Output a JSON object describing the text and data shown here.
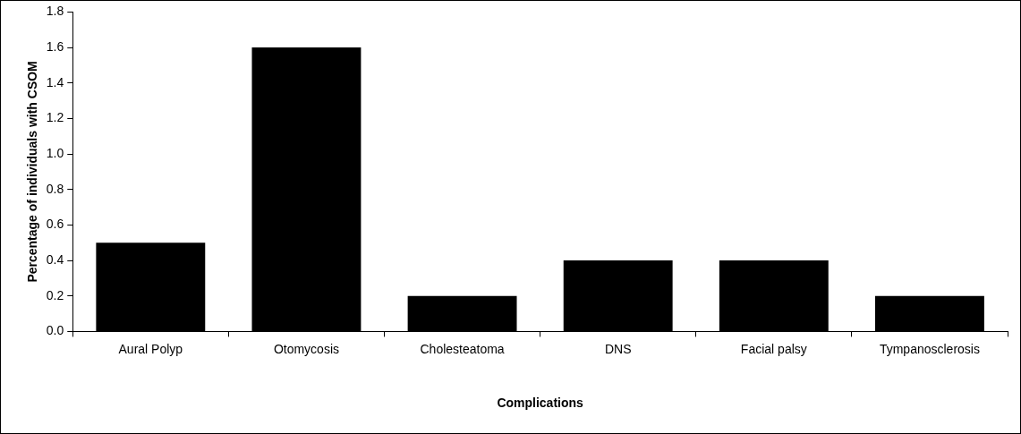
{
  "chart_data": {
    "type": "bar",
    "xlabel": "Complications",
    "ylabel": "Percentage of individuals with CSOM",
    "categories": [
      "Aural Polyp",
      "Otomycosis",
      "Cholesteatoma",
      "DNS",
      "Facial palsy",
      "Tympanosclerosis"
    ],
    "values": [
      0.5,
      1.6,
      0.2,
      0.4,
      0.4,
      0.2
    ],
    "color": "#000000",
    "ylim": [
      0,
      1.8
    ],
    "yticks": [
      {
        "value": 0,
        "label": "0.0"
      },
      {
        "value": 0.2,
        "label": "0.2"
      },
      {
        "value": 0.4,
        "label": "0.4"
      },
      {
        "value": 0.6,
        "label": "0.6"
      },
      {
        "value": 0.8,
        "label": "0.8"
      },
      {
        "value": 1,
        "label": "1.0"
      },
      {
        "value": 1.2,
        "label": "1.2"
      },
      {
        "value": 1.4,
        "label": "1.4"
      },
      {
        "value": 1.6,
        "label": "1.6"
      },
      {
        "value": 1.8,
        "label": "1.8"
      }
    ],
    "grid": false,
    "legend": false
  }
}
